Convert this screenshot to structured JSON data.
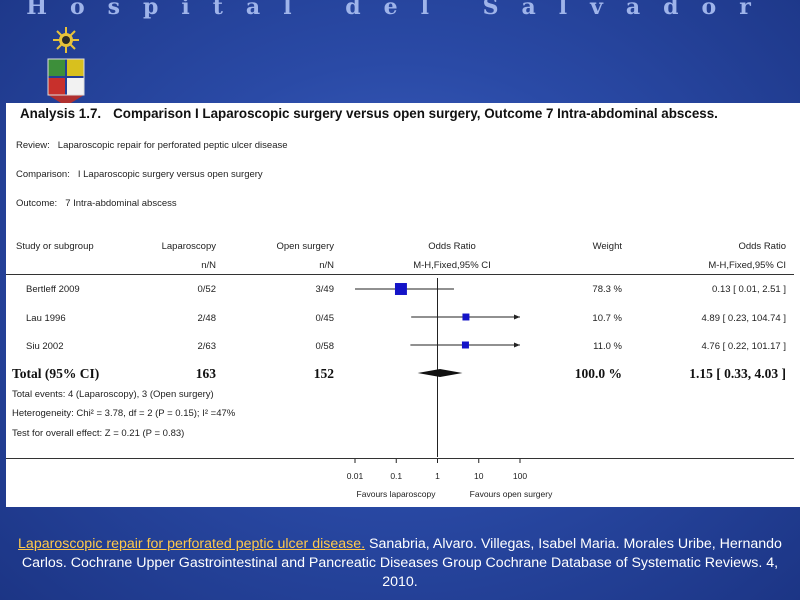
{
  "header": {
    "hospital_name": "Hospital del Salvador"
  },
  "figure": {
    "analysis_number": "Analysis 1.7.",
    "analysis_title": "Comparison I Laparoscopic surgery versus open surgery, Outcome 7 Intra-abdominal abscess.",
    "review_label": "Review:",
    "review_value": "Laparoscopic repair for perforated peptic ulcer disease",
    "comparison_label": "Comparison:",
    "comparison_value": "I Laparoscopic surgery versus open surgery",
    "outcome_label": "Outcome:",
    "outcome_value": "7 Intra-abdominal abscess",
    "columns": {
      "study": "Study or subgroup",
      "lap": "Laparoscopy",
      "lap_sub": "n/N",
      "open": "Open surgery",
      "open_sub": "n/N",
      "or": "Odds Ratio",
      "or_sub": "M-H,Fixed,95% CI",
      "weight": "Weight",
      "or2": "Odds Ratio",
      "or2_sub": "M-H,Fixed,95% CI"
    },
    "rows": [
      {
        "study": "Bertleff 2009",
        "lap": "0/52",
        "open": "3/49",
        "weight": "78.3 %",
        "ci": "0.13 [ 0.01, 2.51 ]"
      },
      {
        "study": "Lau 1996",
        "lap": "2/48",
        "open": "0/45",
        "weight": "10.7 %",
        "ci": "4.89 [ 0.23, 104.74 ]"
      },
      {
        "study": "Siu 2002",
        "lap": "2/63",
        "open": "0/58",
        "weight": "11.0 %",
        "ci": "4.76 [ 0.22, 101.17 ]"
      }
    ],
    "total": {
      "label": "Total (95% CI)",
      "lap": "163",
      "open": "152",
      "weight": "100.0 %",
      "ci": "1.15 [ 0.33, 4.03 ]"
    },
    "footer_lines": [
      "Total events: 4 (Laparoscopy), 3 (Open surgery)",
      "Heterogeneity: Chi² = 3.78, df = 2 (P = 0.15); I² =47%",
      "Test for overall effect: Z = 0.21 (P = 0.83)"
    ],
    "favours_left": "Favours laparoscopy",
    "favours_right": "Favours open surgery"
  },
  "chart_data": {
    "type": "scatter",
    "x_scale": "log",
    "xlim": [
      0.01,
      100
    ],
    "x_ticks": [
      0.01,
      0.1,
      1,
      10,
      100
    ],
    "x_tick_labels": [
      "0.01",
      "0.1",
      "1",
      "10",
      "100"
    ],
    "studies": [
      {
        "name": "Bertleff 2009",
        "or": 0.13,
        "lower": 0.01,
        "upper": 2.51,
        "weight": 78.3
      },
      {
        "name": "Lau 1996",
        "or": 4.89,
        "lower": 0.23,
        "upper": 104.74,
        "weight": 10.7
      },
      {
        "name": "Siu 2002",
        "or": 4.76,
        "lower": 0.22,
        "upper": 101.17,
        "weight": 11.0
      }
    ],
    "pooled": {
      "name": "Total (95% CI)",
      "or": 1.15,
      "lower": 0.33,
      "upper": 4.03
    },
    "colors": {
      "marker": "#1414c8",
      "line": "#222222"
    }
  },
  "citation": {
    "link_text": "Laparoscopic repair for perforated peptic ulcer disease.",
    "rest": " Sanabria, Alvaro. Villegas, Isabel Maria. Morales Uribe, Hernando Carlos. Cochrane Upper Gastrointestinal and Pancreatic Diseases Group Cochrane Database of Systematic Reviews. 4, 2010."
  }
}
